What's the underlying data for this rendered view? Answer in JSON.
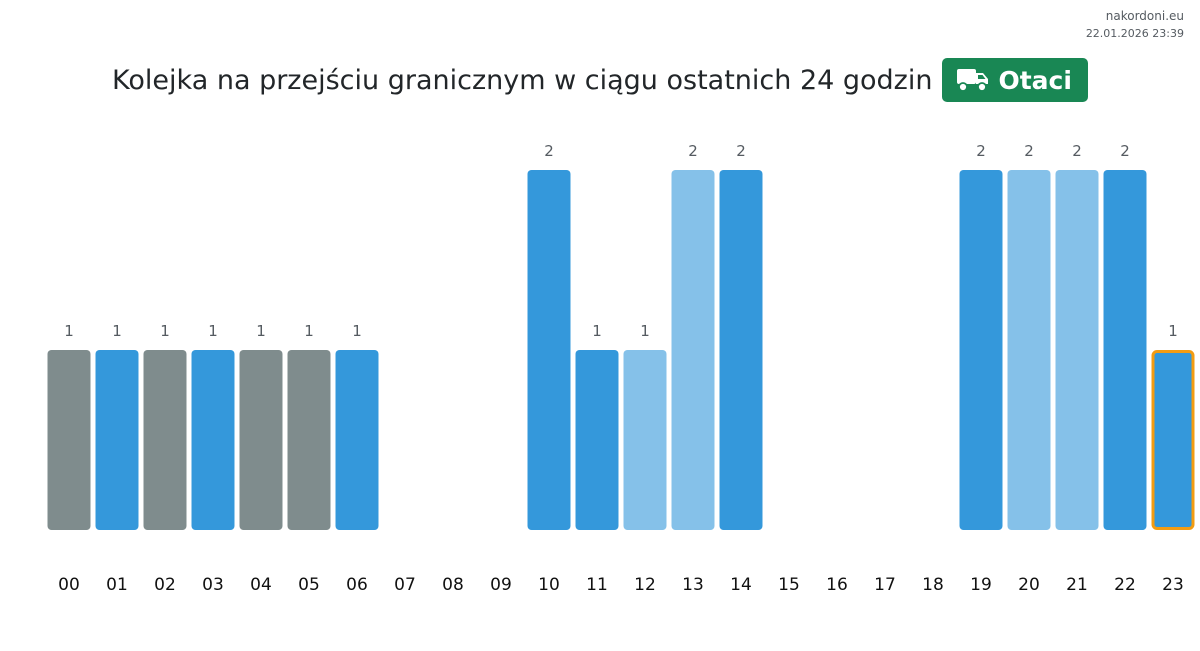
{
  "site": {
    "domain": "nakordoni.eu",
    "timestamp": "22.01.2026 23:39"
  },
  "header": {
    "title": "Kolejka na przejściu granicznym w ciągu ostatnich 24 godzin",
    "badge_label": "Otaci",
    "badge_icon": "truck-icon",
    "badge_color": "#198754"
  },
  "colors": {
    "gray": "#7f8c8d",
    "blue": "#3498db",
    "light_blue": "#85c1e9",
    "highlight": "#f39c12"
  },
  "chart_data": {
    "type": "bar",
    "categories": [
      "00",
      "01",
      "02",
      "03",
      "04",
      "05",
      "06",
      "07",
      "08",
      "09",
      "10",
      "11",
      "12",
      "13",
      "14",
      "15",
      "16",
      "17",
      "18",
      "19",
      "20",
      "21",
      "22",
      "23"
    ],
    "values": [
      1,
      1,
      1,
      1,
      1,
      1,
      1,
      0,
      0,
      0,
      2,
      1,
      1,
      2,
      2,
      0,
      0,
      0,
      0,
      2,
      2,
      2,
      2,
      1
    ],
    "bar_colors": [
      "gray",
      "blue",
      "gray",
      "blue",
      "gray",
      "gray",
      "blue",
      "blue",
      "blue",
      "blue",
      "blue",
      "blue",
      "light_blue",
      "light_blue",
      "blue",
      "blue",
      "blue",
      "blue",
      "blue",
      "blue",
      "light_blue",
      "light_blue",
      "blue",
      "blue"
    ],
    "highlighted_category": "23",
    "ylim": [
      0,
      2
    ],
    "grid": false,
    "legend": "none"
  }
}
